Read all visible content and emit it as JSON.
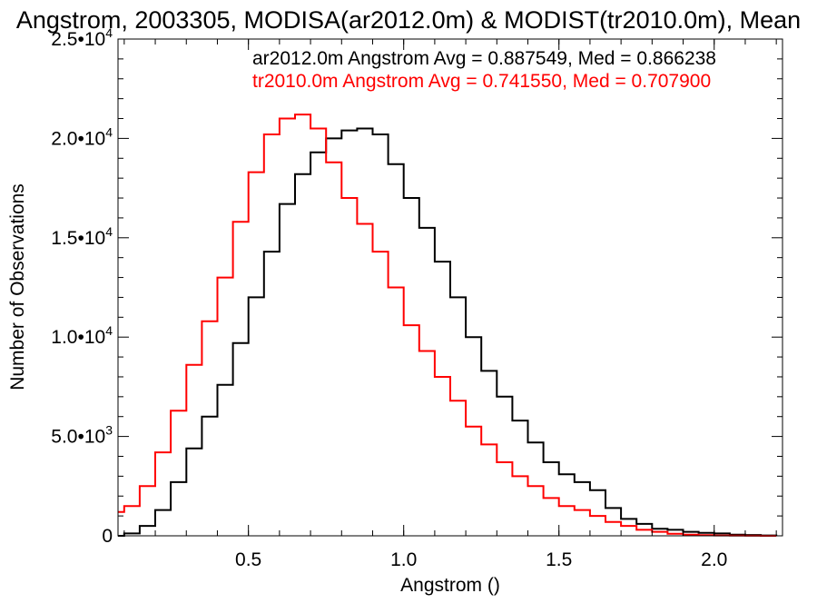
{
  "chart_data": {
    "type": "line",
    "title": "Angstrom, 2003305, MODISA(ar2012.0m) & MODIST(tr2010.0m), Mean",
    "xlabel": "Angstrom ()",
    "ylabel": "Number of Observations",
    "xlim": [
      0.08,
      2.22
    ],
    "ylim": [
      0,
      25000
    ],
    "grid": false,
    "step": true,
    "x_ticks": [
      {
        "value": 0.5,
        "label": "0.5"
      },
      {
        "value": 1.0,
        "label": "1.0"
      },
      {
        "value": 1.5,
        "label": "1.5"
      },
      {
        "value": 2.0,
        "label": "2.0"
      }
    ],
    "y_ticks": [
      {
        "value": 0,
        "mantissa": "0",
        "exp": ""
      },
      {
        "value": 5000,
        "mantissa": "5.0•10",
        "exp": "3"
      },
      {
        "value": 10000,
        "mantissa": "1.0•10",
        "exp": "4"
      },
      {
        "value": 15000,
        "mantissa": "1.5•10",
        "exp": "4"
      },
      {
        "value": 20000,
        "mantissa": "2.0•10",
        "exp": "4"
      },
      {
        "value": 25000,
        "mantissa": "2.5•10",
        "exp": "4"
      }
    ],
    "annotations": [
      {
        "text": "ar2012.0m Angstrom Avg = 0.887549, Med = 0.866238",
        "color": "#000000"
      },
      {
        "text": "tr2010.0m Angstrom Avg = 0.741550, Med = 0.707900",
        "color": "#ff0000"
      }
    ],
    "series": [
      {
        "color": "#000000",
        "x": [
          0.08,
          0.1,
          0.15,
          0.2,
          0.25,
          0.3,
          0.35,
          0.4,
          0.45,
          0.5,
          0.55,
          0.6,
          0.65,
          0.7,
          0.75,
          0.8,
          0.85,
          0.9,
          0.95,
          1.0,
          1.05,
          1.1,
          1.15,
          1.2,
          1.25,
          1.3,
          1.35,
          1.4,
          1.45,
          1.5,
          1.55,
          1.6,
          1.65,
          1.7,
          1.75,
          1.8,
          1.85,
          1.9,
          1.95,
          2.0,
          2.05,
          2.1,
          2.15,
          2.2
        ],
        "y": [
          0,
          120,
          500,
          1300,
          2700,
          4400,
          6000,
          7600,
          9700,
          12000,
          14300,
          16700,
          18200,
          19300,
          20000,
          20400,
          20500,
          20200,
          18700,
          17000,
          15500,
          13800,
          12000,
          10000,
          8300,
          7000,
          5800,
          4700,
          3700,
          3100,
          2700,
          2300,
          1400,
          850,
          600,
          350,
          300,
          200,
          150,
          120,
          60,
          40,
          20,
          0
        ]
      },
      {
        "color": "#ff0000",
        "x": [
          0.08,
          0.1,
          0.15,
          0.2,
          0.25,
          0.3,
          0.35,
          0.4,
          0.45,
          0.5,
          0.55,
          0.6,
          0.65,
          0.7,
          0.75,
          0.8,
          0.85,
          0.9,
          0.95,
          1.0,
          1.05,
          1.1,
          1.15,
          1.2,
          1.25,
          1.3,
          1.35,
          1.4,
          1.45,
          1.5,
          1.55,
          1.6,
          1.65,
          1.7,
          1.75,
          1.8,
          1.85,
          1.9,
          1.95,
          2.0,
          2.05,
          2.1,
          2.15,
          2.2
        ],
        "y": [
          1200,
          1500,
          2500,
          4200,
          6300,
          8600,
          10800,
          13000,
          15800,
          18300,
          20200,
          21000,
          21200,
          20500,
          18800,
          17000,
          15700,
          14300,
          12500,
          10600,
          9300,
          8000,
          6800,
          5500,
          4600,
          3700,
          3000,
          2500,
          1900,
          1500,
          1300,
          1000,
          700,
          500,
          300,
          200,
          100,
          60,
          30,
          20,
          10,
          5,
          0,
          0
        ]
      }
    ]
  }
}
